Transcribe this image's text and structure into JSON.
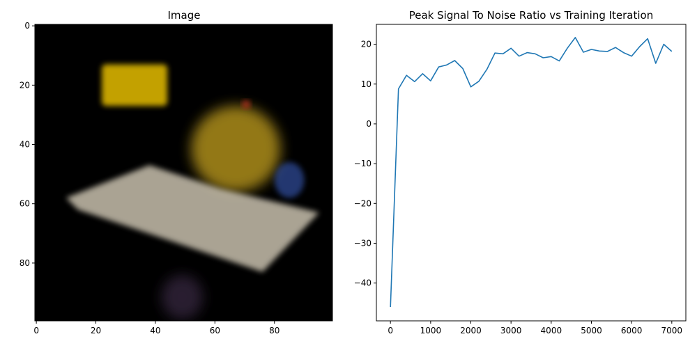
{
  "chart_data": [
    {
      "type": "image",
      "title": "Image",
      "xlabel": "",
      "ylabel": "",
      "xlim": [
        -0.5,
        99.5
      ],
      "ylim": [
        99.5,
        -0.5
      ],
      "x_ticks": [
        0,
        20,
        40,
        60,
        80
      ],
      "y_ticks": [
        0,
        20,
        40,
        60,
        80
      ],
      "background": "#000000",
      "regions": [
        {
          "name": "yellow-box-top-left",
          "x": [
            22,
            44
          ],
          "y": [
            13,
            27
          ],
          "color": "#d9b300"
        },
        {
          "name": "yellow-blob-right",
          "x": [
            52,
            82
          ],
          "y": [
            27,
            56
          ],
          "color": "#b8961a"
        },
        {
          "name": "white-slab",
          "x": [
            10,
            95
          ],
          "y": [
            47,
            83
          ],
          "color": "#c8c0ad"
        },
        {
          "name": "dark-purple-blob",
          "x": [
            42,
            56
          ],
          "y": [
            84,
            99
          ],
          "color": "#3a2a44"
        },
        {
          "name": "red-spot",
          "x": [
            69,
            72
          ],
          "y": [
            25,
            28
          ],
          "color": "#c03020"
        },
        {
          "name": "blue-spots",
          "x": [
            80,
            90
          ],
          "y": [
            46,
            58
          ],
          "color": "#3050a0"
        }
      ]
    },
    {
      "type": "line",
      "title": "Peak Signal To Noise Ratio vs Training Iteration",
      "xlabel": "",
      "ylabel": "",
      "xlim": [
        -350,
        7350
      ],
      "ylim": [
        -49.5,
        25
      ],
      "x_ticks": [
        0,
        1000,
        2000,
        3000,
        4000,
        5000,
        6000,
        7000
      ],
      "y_ticks": [
        -40,
        -30,
        -20,
        -10,
        0,
        10,
        20
      ],
      "grid": false,
      "series": [
        {
          "color": "#1f77b4",
          "x": [
            0,
            200,
            400,
            600,
            800,
            1000,
            1200,
            1400,
            1600,
            1800,
            2000,
            2200,
            2400,
            2600,
            2800,
            3000,
            3200,
            3400,
            3600,
            3800,
            4000,
            4200,
            4400,
            4600,
            4800,
            5000,
            5200,
            5400,
            5600,
            5800,
            6000,
            6200,
            6400,
            6600,
            6800,
            7000
          ],
          "values": [
            -46.0,
            8.8,
            12.2,
            10.6,
            12.6,
            10.8,
            14.3,
            14.8,
            15.9,
            13.9,
            9.3,
            10.7,
            13.7,
            17.8,
            17.6,
            19.0,
            17.0,
            17.9,
            17.6,
            16.6,
            16.9,
            15.8,
            19.0,
            21.7,
            18.0,
            18.7,
            18.3,
            18.2,
            19.2,
            17.9,
            17.0,
            19.4,
            21.4,
            15.2,
            20.0,
            18.2
          ]
        }
      ]
    }
  ]
}
